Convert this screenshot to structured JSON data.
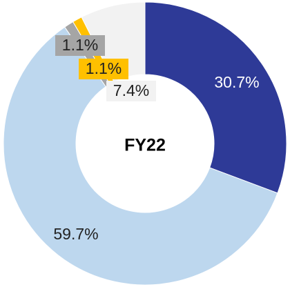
{
  "chart_data": {
    "type": "donut",
    "title": "FY22",
    "values": [
      30.7,
      59.7,
      1.1,
      1.1,
      7.4
    ],
    "value_labels": [
      "30.7%",
      "59.7%",
      "1.1%",
      "1.1%",
      "7.4%"
    ],
    "colors": [
      "#2E3A97",
      "#BDD7EE",
      "#A5A5A5",
      "#FFC000",
      "#F2F2F2"
    ]
  }
}
